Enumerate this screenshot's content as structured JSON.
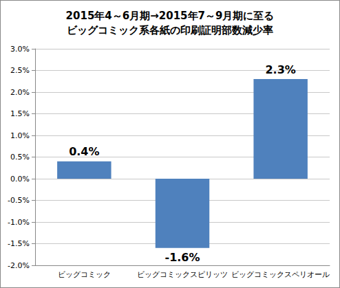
{
  "chart_data": {
    "type": "bar",
    "title": "2015年4～6月期→2015年7～9月期に至る\nビッグコミック系各紙の印刷証明部数減少率",
    "categories": [
      "ビッグコミック",
      "ビッグコミックスピリッツ",
      "ビッグコミックスペリオール"
    ],
    "values": [
      0.4,
      -1.6,
      2.3
    ],
    "value_labels": [
      "0.4%",
      "-1.6%",
      "2.3%"
    ],
    "color": "#4f81bd",
    "ylim": [
      -2,
      3
    ],
    "yticks": [
      {
        "value": -2,
        "label": "-2.0%"
      },
      {
        "value": -1.5,
        "label": "-1.5%"
      },
      {
        "value": -1,
        "label": "-1.0%"
      },
      {
        "value": -0.5,
        "label": "-0.5%"
      },
      {
        "value": 0,
        "label": "0.0%"
      },
      {
        "value": 0.5,
        "label": "0.5%"
      },
      {
        "value": 1,
        "label": "1.0%"
      },
      {
        "value": 1.5,
        "label": "1.5%"
      },
      {
        "value": 2,
        "label": "2.0%"
      },
      {
        "value": 2.5,
        "label": "2.5%"
      },
      {
        "value": 3,
        "label": "3.0%"
      }
    ],
    "grid": true,
    "data_labels": true
  }
}
